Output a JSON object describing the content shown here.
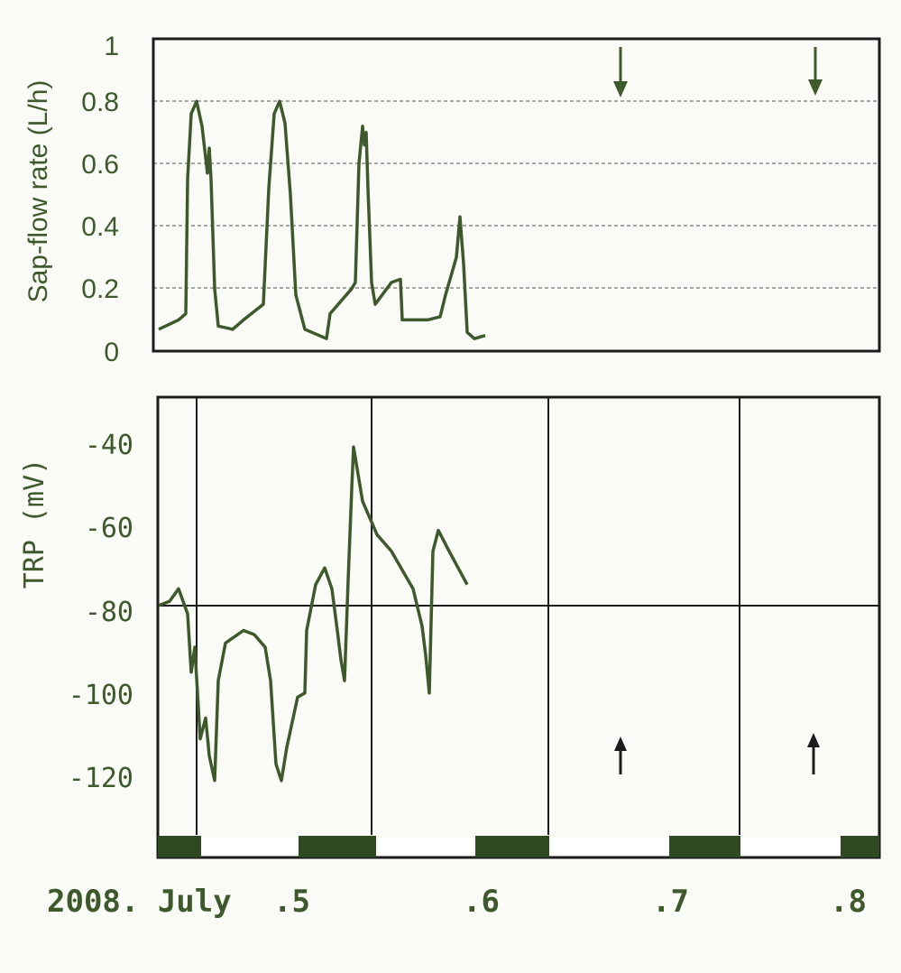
{
  "colors": {
    "ink": "#3e5a2c",
    "frame": "#1c1c1c",
    "grid": "#8a8a8a",
    "background": "#fafaf7"
  },
  "icons": [
    "down-arrow-icon",
    "up-arrow-icon"
  ],
  "chart_data": [
    {
      "type": "line",
      "ylabel": "Sap-flow rate (L/h)",
      "xlabel": "",
      "ylim": [
        0,
        1
      ],
      "yticks": [
        "0",
        "0.2",
        "0.4",
        "0.6",
        "0.8",
        "1"
      ],
      "grid": "horizontal dashed at 0.2, 0.4, 0.6, 0.8",
      "x_days": [
        "July 5",
        "July 6",
        "July 7",
        "July 8"
      ],
      "series": [
        {
          "values": [
            [
              4.59,
              0.07
            ],
            [
              4.7,
              0.1
            ],
            [
              4.74,
              0.12
            ],
            [
              4.75,
              0.55
            ],
            [
              4.77,
              0.76
            ],
            [
              4.8,
              0.8
            ],
            [
              4.83,
              0.72
            ],
            [
              4.86,
              0.57
            ],
            [
              4.87,
              0.65
            ],
            [
              4.88,
              0.55
            ],
            [
              4.9,
              0.2
            ],
            [
              4.92,
              0.08
            ],
            [
              5.0,
              0.07
            ],
            [
              5.06,
              0.1
            ],
            [
              5.17,
              0.15
            ],
            [
              5.2,
              0.52
            ],
            [
              5.23,
              0.76
            ],
            [
              5.26,
              0.8
            ],
            [
              5.29,
              0.73
            ],
            [
              5.32,
              0.5
            ],
            [
              5.35,
              0.18
            ],
            [
              5.4,
              0.07
            ],
            [
              5.52,
              0.04
            ],
            [
              5.54,
              0.12
            ],
            [
              5.66,
              0.2
            ],
            [
              5.68,
              0.22
            ],
            [
              5.7,
              0.6
            ],
            [
              5.72,
              0.72
            ],
            [
              5.73,
              0.66
            ],
            [
              5.74,
              0.7
            ],
            [
              5.75,
              0.52
            ],
            [
              5.77,
              0.22
            ],
            [
              5.79,
              0.15
            ],
            [
              5.88,
              0.22
            ],
            [
              5.93,
              0.23
            ],
            [
              5.94,
              0.1
            ],
            [
              6.08,
              0.1
            ],
            [
              6.15,
              0.11
            ],
            [
              6.18,
              0.18
            ],
            [
              6.24,
              0.3
            ],
            [
              6.26,
              0.43
            ],
            [
              6.28,
              0.28
            ],
            [
              6.3,
              0.06
            ],
            [
              6.34,
              0.04
            ],
            [
              6.4,
              0.05
            ]
          ]
        }
      ],
      "annotations": [
        {
          "icon": "down-arrow-icon",
          "x": 5.74
        },
        {
          "icon": "down-arrow-icon",
          "x": 6.27
        }
      ]
    },
    {
      "type": "line",
      "ylabel": "TRP (mV)",
      "xlabel": "",
      "ylim": [
        -138,
        -30
      ],
      "yticks": [
        "-40",
        "-60",
        "-80",
        "-100",
        "-120"
      ],
      "grid": "horizontal line at -80; vertical lines at day boundaries",
      "day_night_bar": [
        "night",
        "day",
        "night",
        "day",
        "night",
        "day",
        "night",
        "day",
        "night"
      ],
      "series": [
        {
          "values": [
            [
              4.59,
              -80
            ],
            [
              4.65,
              -79
            ],
            [
              4.7,
              -76
            ],
            [
              4.75,
              -82
            ],
            [
              4.77,
              -96
            ],
            [
              4.79,
              -90
            ],
            [
              4.82,
              -112
            ],
            [
              4.85,
              -107
            ],
            [
              4.87,
              -116
            ],
            [
              4.9,
              -122
            ],
            [
              4.92,
              -98
            ],
            [
              4.96,
              -89
            ],
            [
              5.06,
              -86
            ],
            [
              5.12,
              -87
            ],
            [
              5.18,
              -90
            ],
            [
              5.21,
              -98
            ],
            [
              5.24,
              -118
            ],
            [
              5.27,
              -122
            ],
            [
              5.3,
              -114
            ],
            [
              5.36,
              -102
            ],
            [
              5.4,
              -101
            ],
            [
              5.41,
              -86
            ],
            [
              5.46,
              -75
            ],
            [
              5.51,
              -71
            ],
            [
              5.55,
              -76
            ],
            [
              5.58,
              -86
            ],
            [
              5.6,
              -93
            ],
            [
              5.62,
              -98
            ],
            [
              5.64,
              -74
            ],
            [
              5.66,
              -52
            ],
            [
              5.67,
              -42
            ],
            [
              5.72,
              -55
            ],
            [
              5.8,
              -63
            ],
            [
              5.88,
              -67
            ],
            [
              5.96,
              -73
            ],
            [
              6.0,
              -76
            ],
            [
              6.05,
              -85
            ],
            [
              6.07,
              -92
            ],
            [
              6.09,
              -101
            ],
            [
              6.11,
              -67
            ],
            [
              6.14,
              -62
            ],
            [
              6.2,
              -67
            ],
            [
              6.3,
              -75
            ]
          ]
        }
      ],
      "annotations": [
        {
          "icon": "up-arrow-icon",
          "x": 5.74
        },
        {
          "icon": "up-arrow-icon",
          "x": 6.27
        }
      ]
    }
  ],
  "x_axis": {
    "date_prefix": "2008. July",
    "ticks": [
      ".5",
      ".6",
      ".7",
      ".8"
    ]
  }
}
